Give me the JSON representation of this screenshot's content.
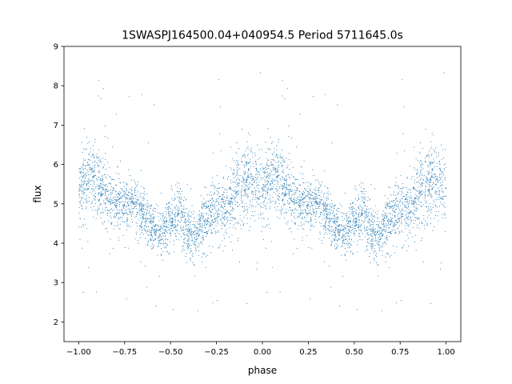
{
  "chart_data": {
    "type": "scatter",
    "title": "1SWASPJ164500.04+040954.5 Period 5711645.0s",
    "xlabel": "phase",
    "ylabel": "flux",
    "xlim": [
      -1.08,
      1.08
    ],
    "ylim": [
      1.5,
      9.0
    ],
    "xticks": [
      -1.0,
      -0.75,
      -0.5,
      -0.25,
      0.0,
      0.25,
      0.5,
      0.75,
      1.0
    ],
    "xtick_labels": [
      "−1.00",
      "−0.75",
      "−0.50",
      "−0.25",
      "0.00",
      "0.25",
      "0.50",
      "0.75",
      "1.00"
    ],
    "yticks": [
      2,
      3,
      4,
      5,
      6,
      7,
      8,
      9
    ],
    "ytick_labels": [
      "2",
      "3",
      "4",
      "5",
      "6",
      "7",
      "8",
      "9"
    ],
    "grid": false,
    "marker_color": "#1f77b4",
    "series": [
      {
        "profile_phase": [
          0.0,
          0.05,
          0.1,
          0.15,
          0.2,
          0.25,
          0.3,
          0.35,
          0.4,
          0.45,
          0.5,
          0.55,
          0.6,
          0.65,
          0.7,
          0.75,
          0.8,
          0.85,
          0.9,
          0.95,
          1.0
        ],
        "profile_flux_median": [
          5.3,
          5.7,
          5.5,
          5.2,
          5.0,
          4.9,
          5.0,
          4.7,
          4.4,
          4.2,
          4.6,
          4.8,
          4.2,
          4.3,
          4.7,
          4.9,
          4.8,
          5.3,
          5.5,
          5.6,
          5.3
        ],
        "profile_flux_spread": [
          0.9,
          0.8,
          0.8,
          0.7,
          0.7,
          0.6,
          0.6,
          0.6,
          0.5,
          0.5,
          0.6,
          0.7,
          0.6,
          0.6,
          0.7,
          0.7,
          0.8,
          0.9,
          0.9,
          0.9,
          0.9
        ]
      }
    ]
  }
}
